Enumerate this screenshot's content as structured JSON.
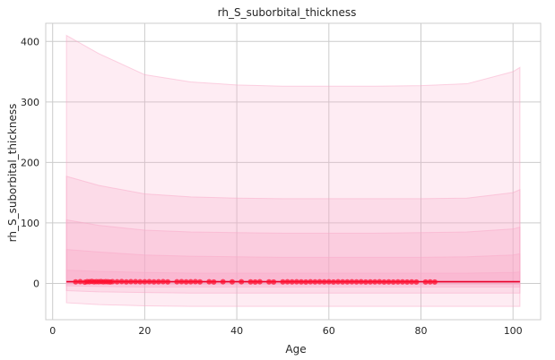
{
  "chart_data": {
    "type": "scatter",
    "title": "rh_S_suborbital_thickness",
    "xlabel": "Age",
    "ylabel": "rh_S_suborbital_thickness",
    "xlim": [
      -1.5,
      106
    ],
    "ylim": [
      -60,
      430
    ],
    "xticks": [
      0,
      20,
      40,
      60,
      80,
      100
    ],
    "yticks": [
      0,
      100,
      200,
      300,
      400
    ],
    "grid": true,
    "colors": {
      "points": "#ff1030",
      "fit_line": "#e8002a",
      "band": "#f9a8c8",
      "grid": "#cccccc",
      "spine": "#cccccc"
    },
    "bands": [
      {
        "name": "outer",
        "opacity": 0.22,
        "x": [
          3,
          10,
          20,
          30,
          40,
          50,
          60,
          70,
          80,
          90,
          100,
          101.5
        ],
        "upper": [
          410,
          380,
          345,
          333,
          328,
          326,
          326,
          326,
          327,
          330,
          350,
          357
        ],
        "lower": [
          -32,
          -35,
          -37,
          -38,
          -38,
          -38,
          -38,
          -38,
          -38,
          -38,
          -38,
          -38
        ]
      },
      {
        "name": "second",
        "opacity": 0.25,
        "x": [
          3,
          10,
          20,
          30,
          40,
          50,
          60,
          70,
          80,
          90,
          100,
          101.5
        ],
        "upper": [
          177,
          162,
          148,
          143,
          141,
          140,
          140,
          140,
          140,
          141,
          150,
          155
        ],
        "lower": [
          -12,
          -14,
          -15,
          -16,
          -16,
          -16,
          -16,
          -16,
          -16,
          -16,
          -16,
          -16
        ]
      },
      {
        "name": "third",
        "opacity": 0.28,
        "x": [
          3,
          10,
          20,
          30,
          40,
          50,
          60,
          70,
          80,
          90,
          100,
          101.5
        ],
        "upper": [
          105,
          96,
          88,
          85,
          84,
          83,
          83,
          83,
          84,
          85,
          90,
          93
        ],
        "lower": [
          -4,
          -5,
          -6,
          -6,
          -6,
          -6,
          -6,
          -6,
          -6,
          -6,
          -6,
          -6
        ]
      },
      {
        "name": "fourth",
        "opacity": 0.3,
        "x": [
          3,
          10,
          20,
          30,
          40,
          50,
          60,
          70,
          80,
          90,
          100,
          101.5
        ],
        "upper": [
          56,
          52,
          47,
          45,
          44,
          43,
          43,
          43,
          43,
          44,
          47,
          49
        ],
        "lower": [
          -1,
          -1,
          -2,
          -2,
          -2,
          -2,
          -2,
          -2,
          -2,
          -2,
          -2,
          -2
        ]
      },
      {
        "name": "inner",
        "opacity": 0.35,
        "x": [
          3,
          10,
          20,
          30,
          40,
          50,
          60,
          70,
          80,
          90,
          100,
          101.5
        ],
        "upper": [
          22,
          20,
          18,
          17,
          17,
          17,
          17,
          17,
          17,
          17,
          18,
          19
        ],
        "lower": [
          1,
          1,
          1,
          1,
          1,
          1,
          1,
          1,
          1,
          1,
          1,
          1
        ]
      }
    ],
    "fit_line": {
      "x": [
        3,
        101.5
      ],
      "y": [
        2.8,
        2.8
      ]
    },
    "points": {
      "x": [
        5,
        6,
        7,
        7.5,
        8,
        8.5,
        9,
        9.5,
        10,
        10.5,
        11,
        11.5,
        12,
        12.5,
        13,
        14,
        15,
        16,
        17,
        18,
        19,
        20,
        21,
        22,
        23,
        24,
        25,
        27,
        28,
        29,
        30,
        31,
        32,
        34,
        35,
        37,
        39,
        41,
        43,
        44,
        45,
        47,
        48,
        50,
        51,
        52,
        53,
        54,
        55,
        56,
        57,
        58,
        59,
        60,
        61,
        62,
        63,
        64,
        65,
        66,
        67,
        68,
        69,
        70,
        71,
        72,
        73,
        74,
        75,
        76,
        77,
        78,
        79,
        81,
        82,
        83
      ],
      "y": [
        2.5,
        3,
        2,
        3,
        2.8,
        3.2,
        2.5,
        3,
        2.7,
        3.1,
        2.6,
        3,
        2.8,
        2.4,
        3,
        2.8,
        3.1,
        2.6,
        2.9,
        3,
        2.7,
        2.8,
        3,
        2.5,
        2.7,
        2.9,
        2.6,
        2.8,
        3,
        2.5,
        2.7,
        2.9,
        2.6,
        2.8,
        2.4,
        2.7,
        2.5,
        2.8,
        2.6,
        2.4,
        2.7,
        2.5,
        2.3,
        2.6,
        2.8,
        2.5,
        2.7,
        2.6,
        2.4,
        2.8,
        2.5,
        2.7,
        2.6,
        2.8,
        2.4,
        2.7,
        2.5,
        2.6,
        2.8,
        2.5,
        2.7,
        2.4,
        2.6,
        2.5,
        2.7,
        2.3,
        2.6,
        2.4,
        2.5,
        2.6,
        2.4,
        2.5,
        2.3,
        2.4,
        2.5,
        2.3
      ]
    }
  }
}
